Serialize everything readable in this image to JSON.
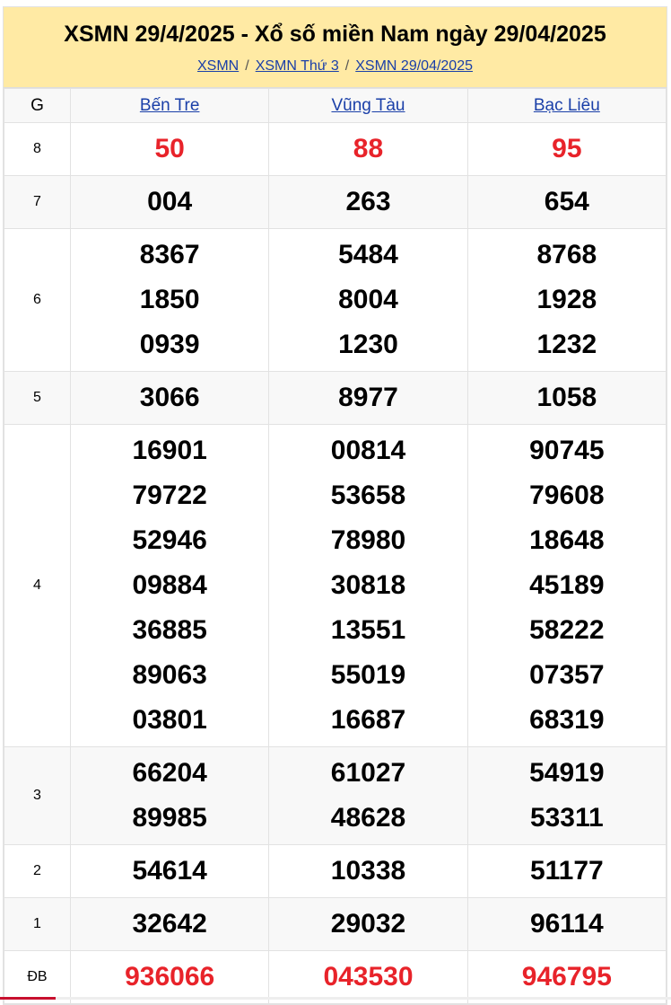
{
  "header": {
    "title": "XSMN 29/4/2025 - Xổ số miền Nam ngày 29/04/2025",
    "breadcrumbs": [
      "XSMN",
      "XSMN Thứ 3",
      "XSMN 29/04/2025"
    ]
  },
  "table": {
    "columns": [
      "G",
      "Bến Tre",
      "Vũng Tàu",
      "Bạc Liêu"
    ],
    "rows": [
      {
        "prize": "8",
        "highlight": true,
        "values": [
          [
            "50"
          ],
          [
            "88"
          ],
          [
            "95"
          ]
        ]
      },
      {
        "prize": "7",
        "values": [
          [
            "004"
          ],
          [
            "263"
          ],
          [
            "654"
          ]
        ]
      },
      {
        "prize": "6",
        "values": [
          [
            "8367",
            "1850",
            "0939"
          ],
          [
            "5484",
            "8004",
            "1230"
          ],
          [
            "8768",
            "1928",
            "1232"
          ]
        ]
      },
      {
        "prize": "5",
        "values": [
          [
            "3066"
          ],
          [
            "8977"
          ],
          [
            "1058"
          ]
        ]
      },
      {
        "prize": "4",
        "values": [
          [
            "16901",
            "79722",
            "52946",
            "09884",
            "36885",
            "89063",
            "03801"
          ],
          [
            "00814",
            "53658",
            "78980",
            "30818",
            "13551",
            "55019",
            "16687"
          ],
          [
            "90745",
            "79608",
            "18648",
            "45189",
            "58222",
            "07357",
            "68319"
          ]
        ]
      },
      {
        "prize": "3",
        "values": [
          [
            "66204",
            "89985"
          ],
          [
            "61027",
            "48628"
          ],
          [
            "54919",
            "53311"
          ]
        ]
      },
      {
        "prize": "2",
        "values": [
          [
            "54614"
          ],
          [
            "10338"
          ],
          [
            "51177"
          ]
        ]
      },
      {
        "prize": "1",
        "values": [
          [
            "32642"
          ],
          [
            "29032"
          ],
          [
            "96114"
          ]
        ]
      },
      {
        "prize": "ĐB",
        "highlight": true,
        "values": [
          [
            "936066"
          ],
          [
            "043530"
          ],
          [
            "946795"
          ]
        ]
      }
    ]
  },
  "colors": {
    "header_bg": "#ffeaa4",
    "highlight": "#e8232a",
    "link": "#1a3fa8"
  }
}
